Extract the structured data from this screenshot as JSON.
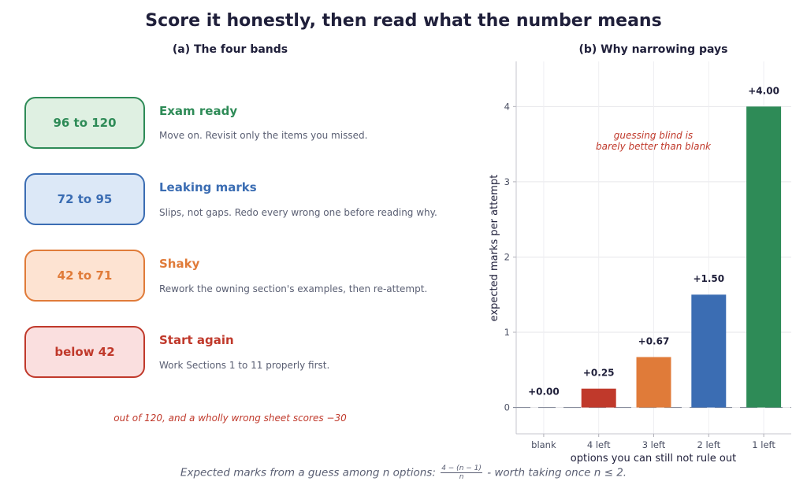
{
  "title": "Score it honestly, then read what the number means",
  "panel_a": {
    "title": "(a) The four bands",
    "bands": [
      {
        "range": "96 to 120",
        "label": "Exam ready",
        "desc": "Move on. Revisit only the items you missed.",
        "color": "#2e8b57",
        "fill": "#dff0e2"
      },
      {
        "range": "72 to 95",
        "label": "Leaking marks",
        "desc": "Slips, not gaps. Redo every wrong one before reading why.",
        "color": "#3b6db3",
        "fill": "#dce8f7"
      },
      {
        "range": "42 to 71",
        "label": "Shaky",
        "desc": "Rework the owning section's examples, then re-attempt.",
        "color": "#e07b39",
        "fill": "#fde3d2"
      },
      {
        "range": "below 42",
        "label": "Start again",
        "desc": "Work Sections 1 to 11 properly first.",
        "color": "#c0392b",
        "fill": "#fadfdf"
      }
    ],
    "note": "out of 120, and a wholly wrong sheet scores −30"
  },
  "panel_b": {
    "title": "(b) Why narrowing pays",
    "annotation_line1": "guessing blind is",
    "annotation_line2": "barely better than blank"
  },
  "footnote": {
    "prefix": "Expected marks from a guess among n options:",
    "frac_num": "4 − (n − 1)",
    "frac_den": "n",
    "suffix": "- worth taking once n ≤ 2."
  },
  "chart_data": {
    "type": "bar",
    "categories": [
      "blank",
      "4 left",
      "3 left",
      "2 left",
      "1 left"
    ],
    "values": [
      0.0,
      0.25,
      0.67,
      1.5,
      4.0
    ],
    "data_labels": [
      "+0.00",
      "+0.25",
      "+0.67",
      "+1.50",
      "+4.00"
    ],
    "colors": [
      "#9aa0b0",
      "#c0392b",
      "#e07b39",
      "#3b6db3",
      "#2e8b57"
    ],
    "xlabel": "options you can still not rule out",
    "ylabel": "expected marks per attempt",
    "ylim": [
      -0.35,
      4.6
    ],
    "yticks": [
      0,
      1,
      2,
      3,
      4
    ],
    "grid": true
  }
}
